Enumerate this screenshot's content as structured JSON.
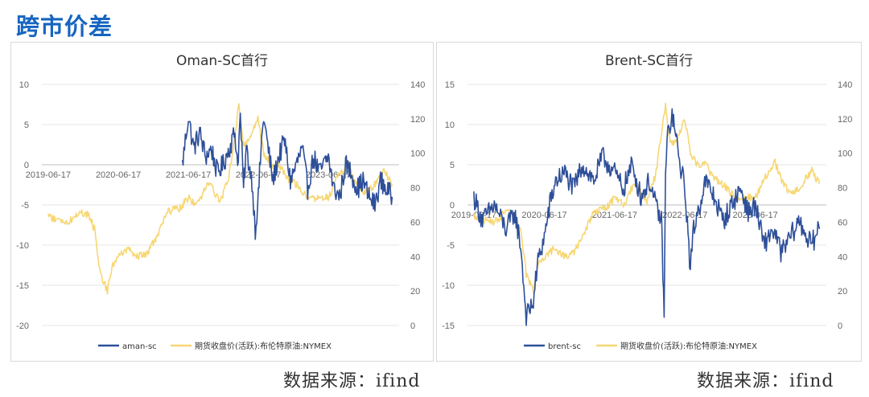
{
  "page": {
    "title": "跨市价差",
    "source_left": "数据来源：ifind",
    "source_right": "数据来源：ifind"
  },
  "colors": {
    "spread": "#2e4f99",
    "brent": "#f7d774",
    "grid": "#e4e4e4"
  },
  "chart_data": [
    {
      "type": "line",
      "title": "Oman-SC首行",
      "x_tick_labels": [
        "2019-06-17",
        "2020-06-17",
        "2021-06-17",
        "2022-06-17",
        "2023-06-17"
      ],
      "left_axis": {
        "ticks": [
          10,
          5,
          0,
          -5,
          -10,
          -15,
          -20
        ],
        "range": [
          -20,
          10
        ]
      },
      "right_axis": {
        "ticks": [
          140,
          120,
          100,
          80,
          60,
          40,
          20,
          0
        ],
        "range": [
          0,
          140
        ]
      },
      "series": [
        {
          "name": "aman-sc",
          "axis": "left",
          "color": "#2e4f99",
          "x_start": "2021-05-17",
          "points": [
            [
              "2021-05-17",
              0
            ],
            [
              "2021-06-01",
              3
            ],
            [
              "2021-06-17",
              6
            ],
            [
              "2021-07-15",
              2
            ],
            [
              "2021-08-15",
              4
            ],
            [
              "2021-09-15",
              1
            ],
            [
              "2021-10-15",
              2
            ],
            [
              "2021-11-15",
              -1
            ],
            [
              "2021-12-15",
              0
            ],
            [
              "2022-01-15",
              2
            ],
            [
              "2022-02-15",
              4
            ],
            [
              "2022-03-01",
              0
            ],
            [
              "2022-03-15",
              6
            ],
            [
              "2022-04-01",
              -3
            ],
            [
              "2022-04-15",
              2
            ],
            [
              "2022-05-15",
              -2
            ],
            [
              "2022-06-01",
              -8
            ],
            [
              "2022-06-17",
              -4
            ],
            [
              "2022-07-01",
              2
            ],
            [
              "2022-07-15",
              6
            ],
            [
              "2022-08-01",
              3
            ],
            [
              "2022-09-01",
              -2
            ],
            [
              "2022-10-01",
              1
            ],
            [
              "2022-11-01",
              3
            ],
            [
              "2022-12-01",
              -2
            ],
            [
              "2023-01-01",
              0
            ],
            [
              "2023-02-01",
              2
            ],
            [
              "2023-03-01",
              -3
            ],
            [
              "2023-04-01",
              1
            ],
            [
              "2023-05-01",
              -1
            ],
            [
              "2023-06-17",
              1
            ],
            [
              "2023-07-15",
              -3
            ],
            [
              "2023-08-15",
              -4
            ],
            [
              "2023-09-15",
              0
            ],
            [
              "2023-10-15",
              -1
            ],
            [
              "2023-11-15",
              -3
            ],
            [
              "2023-12-15",
              -2
            ],
            [
              "2024-01-15",
              -4
            ],
            [
              "2024-02-15",
              -5
            ],
            [
              "2024-03-15",
              -2
            ],
            [
              "2024-04-15",
              -3
            ],
            [
              "2024-05-15",
              -4
            ]
          ]
        },
        {
          "name": "期货收盘价(活跃):布伦特原油:NYMEX",
          "axis": "right",
          "color": "#f7d774",
          "points": [
            [
              "2019-06-17",
              64
            ],
            [
              "2019-08-01",
              61
            ],
            [
              "2019-10-01",
              60
            ],
            [
              "2019-12-01",
              66
            ],
            [
              "2020-01-15",
              64
            ],
            [
              "2020-02-15",
              55
            ],
            [
              "2020-03-15",
              30
            ],
            [
              "2020-04-21",
              20
            ],
            [
              "2020-05-15",
              35
            ],
            [
              "2020-06-17",
              40
            ],
            [
              "2020-08-01",
              44
            ],
            [
              "2020-10-01",
              40
            ],
            [
              "2020-11-15",
              42
            ],
            [
              "2021-01-01",
              51
            ],
            [
              "2021-03-01",
              66
            ],
            [
              "2021-05-01",
              68
            ],
            [
              "2021-06-17",
              74
            ],
            [
              "2021-08-01",
              70
            ],
            [
              "2021-10-01",
              83
            ],
            [
              "2021-12-01",
              72
            ],
            [
              "2022-01-15",
              87
            ],
            [
              "2022-03-08",
              128
            ],
            [
              "2022-04-01",
              105
            ],
            [
              "2022-05-01",
              107
            ],
            [
              "2022-06-15",
              120
            ],
            [
              "2022-07-15",
              100
            ],
            [
              "2022-09-01",
              92
            ],
            [
              "2022-10-01",
              94
            ],
            [
              "2022-11-15",
              85
            ],
            [
              "2023-01-01",
              82
            ],
            [
              "2023-03-15",
              73
            ],
            [
              "2023-05-01",
              75
            ],
            [
              "2023-06-17",
              74
            ],
            [
              "2023-08-01",
              85
            ],
            [
              "2023-09-27",
              95
            ],
            [
              "2023-11-01",
              84
            ],
            [
              "2023-12-15",
              77
            ],
            [
              "2024-02-01",
              80
            ],
            [
              "2024-04-05",
              90
            ],
            [
              "2024-05-15",
              82
            ]
          ]
        }
      ]
    },
    {
      "type": "line",
      "title": "Brent-SC首行",
      "x_tick_labels": [
        "2019-06-17",
        "2020-06-17",
        "2021-06-17",
        "2022-06-17",
        "2023-06-17"
      ],
      "left_axis": {
        "ticks": [
          15,
          10,
          5,
          0,
          -5,
          -10,
          -15
        ],
        "range": [
          -15,
          15
        ]
      },
      "right_axis": {
        "ticks": [
          140,
          120,
          100,
          80,
          60,
          40,
          20,
          0
        ],
        "range": [
          0,
          140
        ]
      },
      "series": [
        {
          "name": "brent-sc",
          "axis": "left",
          "color": "#2e4f99",
          "points": [
            [
              "2019-06-17",
              1
            ],
            [
              "2019-08-01",
              -2
            ],
            [
              "2019-10-01",
              0
            ],
            [
              "2019-12-01",
              -3
            ],
            [
              "2020-01-15",
              -1
            ],
            [
              "2020-02-15",
              -5
            ],
            [
              "2020-03-15",
              -14
            ],
            [
              "2020-04-21",
              -12
            ],
            [
              "2020-05-15",
              -7
            ],
            [
              "2020-06-17",
              -4
            ],
            [
              "2020-07-15",
              0
            ],
            [
              "2020-08-15",
              3
            ],
            [
              "2020-10-01",
              4
            ],
            [
              "2020-11-15",
              2
            ],
            [
              "2021-01-01",
              5
            ],
            [
              "2021-03-01",
              3
            ],
            [
              "2021-04-15",
              6
            ],
            [
              "2021-06-17",
              4
            ],
            [
              "2021-08-01",
              2
            ],
            [
              "2021-09-15",
              5
            ],
            [
              "2021-11-01",
              1
            ],
            [
              "2021-12-15",
              3
            ],
            [
              "2022-01-15",
              0
            ],
            [
              "2022-02-15",
              -2
            ],
            [
              "2022-03-01",
              -14
            ],
            [
              "2022-03-08",
              4
            ],
            [
              "2022-03-20",
              9
            ],
            [
              "2022-04-15",
              11
            ],
            [
              "2022-05-15",
              6
            ],
            [
              "2022-06-17",
              2
            ],
            [
              "2022-07-15",
              -8
            ],
            [
              "2022-08-01",
              -3
            ],
            [
              "2022-09-01",
              0
            ],
            [
              "2022-10-01",
              3
            ],
            [
              "2022-11-15",
              1
            ],
            [
              "2023-01-01",
              -2
            ],
            [
              "2023-02-15",
              0
            ],
            [
              "2023-04-01",
              2
            ],
            [
              "2023-05-15",
              -1
            ],
            [
              "2023-06-17",
              0
            ],
            [
              "2023-08-01",
              -5
            ],
            [
              "2023-09-15",
              -3
            ],
            [
              "2023-11-01",
              -6
            ],
            [
              "2023-12-15",
              -4
            ],
            [
              "2024-02-01",
              -2
            ],
            [
              "2024-04-01",
              -5
            ],
            [
              "2024-05-15",
              -3
            ]
          ]
        },
        {
          "name": "期货收盘价(活跃):布伦特原油:NYMEX",
          "axis": "right",
          "color": "#f7d774",
          "points": [
            [
              "2019-06-17",
              64
            ],
            [
              "2019-08-01",
              61
            ],
            [
              "2019-10-01",
              60
            ],
            [
              "2019-12-01",
              66
            ],
            [
              "2020-01-15",
              64
            ],
            [
              "2020-02-15",
              55
            ],
            [
              "2020-03-15",
              30
            ],
            [
              "2020-04-21",
              20
            ],
            [
              "2020-05-15",
              35
            ],
            [
              "2020-06-17",
              40
            ],
            [
              "2020-08-01",
              44
            ],
            [
              "2020-10-01",
              40
            ],
            [
              "2020-11-15",
              42
            ],
            [
              "2021-01-01",
              51
            ],
            [
              "2021-03-01",
              66
            ],
            [
              "2021-05-01",
              68
            ],
            [
              "2021-06-17",
              74
            ],
            [
              "2021-08-01",
              70
            ],
            [
              "2021-10-01",
              83
            ],
            [
              "2021-12-01",
              72
            ],
            [
              "2022-01-15",
              87
            ],
            [
              "2022-03-08",
              128
            ],
            [
              "2022-04-01",
              105
            ],
            [
              "2022-05-01",
              107
            ],
            [
              "2022-06-15",
              120
            ],
            [
              "2022-07-15",
              100
            ],
            [
              "2022-09-01",
              92
            ],
            [
              "2022-10-01",
              94
            ],
            [
              "2022-11-15",
              85
            ],
            [
              "2023-01-01",
              82
            ],
            [
              "2023-03-15",
              73
            ],
            [
              "2023-05-01",
              75
            ],
            [
              "2023-06-17",
              74
            ],
            [
              "2023-08-01",
              85
            ],
            [
              "2023-09-27",
              95
            ],
            [
              "2023-11-01",
              84
            ],
            [
              "2023-12-15",
              77
            ],
            [
              "2024-02-01",
              80
            ],
            [
              "2024-04-05",
              90
            ],
            [
              "2024-05-15",
              82
            ]
          ]
        }
      ]
    }
  ]
}
